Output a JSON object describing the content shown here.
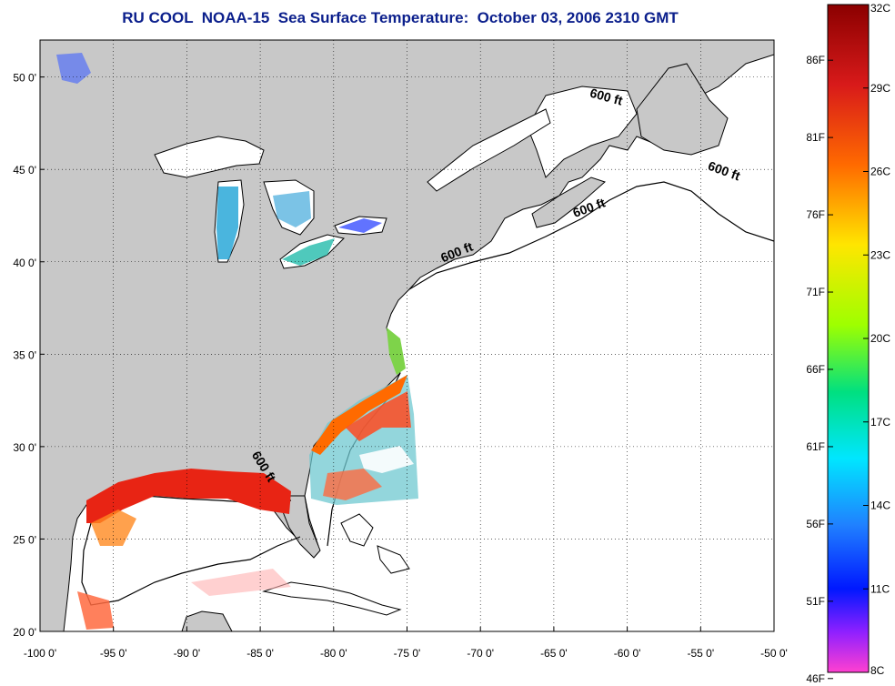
{
  "title": "RU COOL  NOAA-15  Sea Surface Temperature:  October 03, 2006 2310 GMT",
  "map": {
    "lon_range": [
      -100,
      -50
    ],
    "lat_range": [
      20,
      52
    ],
    "lon_ticks": [
      -100,
      -95,
      -90,
      -85,
      -80,
      -75,
      -70,
      -65,
      -60,
      -55,
      -50
    ],
    "lat_ticks": [
      20,
      25,
      30,
      35,
      40,
      45,
      50
    ],
    "lon_labels": [
      "-100 0'",
      "-95 0'",
      "-90 0'",
      "-85 0'",
      "-80 0'",
      "-75 0'",
      "-70 0'",
      "-65 0'",
      "-60 0'",
      "-55 0'",
      "-50 0'"
    ],
    "lat_labels": [
      "20 0'",
      "25 0'",
      "30 0'",
      "35 0'",
      "40 0'",
      "45 0'",
      "50 0'"
    ],
    "grid": true,
    "land_color": "#c8c8c8",
    "ocean_color": "#ffffff",
    "contour_labels": [
      {
        "text": "600 ft",
        "lon": -61.5,
        "lat": 48.7,
        "angle": 15
      },
      {
        "text": "600 ft",
        "lon": -53.5,
        "lat": 44.7,
        "angle": 20
      },
      {
        "text": "600 ft",
        "lon": -62.5,
        "lat": 42.7,
        "angle": -20
      },
      {
        "text": "600 ft",
        "lon": -71.5,
        "lat": 40.3,
        "angle": -22
      },
      {
        "text": "600 ft",
        "lon": -85.0,
        "lat": 28.8,
        "angle": 58
      }
    ]
  },
  "colorbar": {
    "celsius_labels": [
      "32C",
      "29C",
      "26C",
      "23C",
      "20C",
      "17C",
      "14C",
      "11C",
      "8C"
    ],
    "fahrenheit_labels": [
      "86F",
      "81F",
      "76F",
      "71F",
      "66F",
      "61F",
      "56F",
      "51F",
      "46F"
    ],
    "celsius_values": [
      32,
      29,
      26,
      23,
      20,
      17,
      14,
      11,
      8
    ],
    "fahrenheit_values": [
      86,
      81,
      76,
      71,
      66,
      61,
      56,
      51,
      46
    ],
    "range_c": [
      8,
      32
    ],
    "colors": [
      "#8b0000",
      "#d81a1a",
      "#ff6a00",
      "#ffe600",
      "#9eff00",
      "#00e080",
      "#00e6ff",
      "#2080ff",
      "#0018ff",
      "#9020ff",
      "#ff40d0"
    ]
  }
}
